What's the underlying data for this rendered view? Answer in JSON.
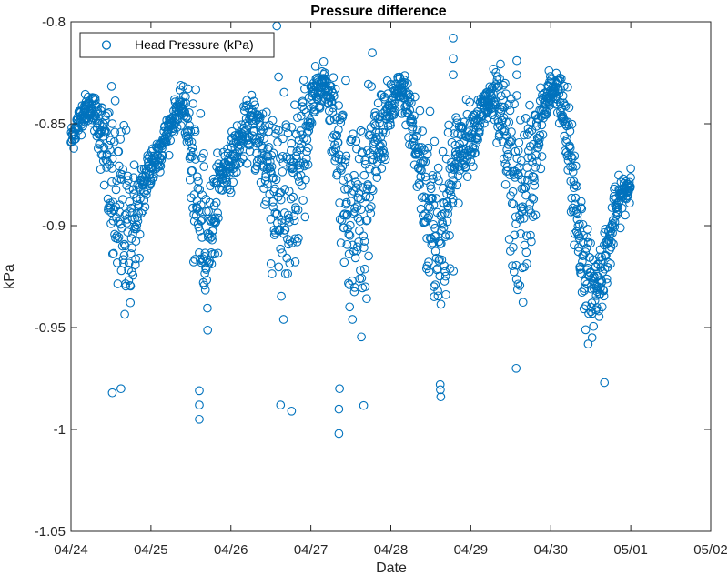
{
  "chart_data": {
    "type": "scatter",
    "title": "Pressure difference",
    "xlabel": "Date",
    "ylabel": "kPa",
    "x_axis_kind": "date",
    "xlim": [
      "04/24",
      "05/02"
    ],
    "ylim": [
      -1.05,
      -0.8
    ],
    "x_ticks": [
      "04/24",
      "04/25",
      "04/26",
      "04/27",
      "04/28",
      "04/29",
      "04/30",
      "05/01",
      "05/02"
    ],
    "y_ticks": [
      -0.8,
      -0.85,
      -0.9,
      -0.95,
      -1,
      -1.05
    ],
    "y_tick_labels": [
      "-0.8",
      "-0.85",
      "-0.9",
      "-0.95",
      "-1",
      "-1.05"
    ],
    "grid": false,
    "legend": {
      "position": "top-left",
      "entries": [
        "Head Pressure (kPa)"
      ]
    },
    "series": [
      {
        "name": "Head Pressure (kPa)",
        "color": "#0072BD",
        "marker": "circle-open",
        "trend": {
          "date": [
            "04/24",
            "04/24",
            "04/24",
            "04/24",
            "04/24",
            "04/24",
            "04/24",
            "04/24",
            "04/24",
            "04/24",
            "04/24",
            "04/24",
            "04/24",
            "04/24",
            "04/24",
            "04/25",
            "04/25",
            "04/25",
            "04/25",
            "04/25",
            "04/25",
            "04/25",
            "04/25",
            "04/25",
            "04/25",
            "04/25",
            "04/25",
            "04/25",
            "04/26",
            "04/26",
            "04/26",
            "04/26",
            "04/26",
            "04/26",
            "04/26",
            "04/26",
            "04/26",
            "04/26",
            "04/26",
            "04/26",
            "04/27",
            "04/27",
            "04/27",
            "04/27",
            "04/27",
            "04/27",
            "04/27",
            "04/27",
            "04/27",
            "04/27",
            "04/27",
            "04/27",
            "04/28",
            "04/28",
            "04/28",
            "04/28",
            "04/28",
            "04/28",
            "04/28",
            "04/28",
            "04/28",
            "04/28",
            "04/28",
            "04/28",
            "04/28",
            "04/29",
            "04/29",
            "04/29",
            "04/29",
            "04/29",
            "04/29",
            "04/29",
            "04/29",
            "04/29",
            "04/29",
            "04/29",
            "04/29",
            "04/30",
            "04/30",
            "04/30",
            "04/30",
            "04/30",
            "04/30",
            "04/30",
            "04/30",
            "04/30",
            "04/30",
            "04/30",
            "04/30",
            "04/30",
            "05/01"
          ],
          "hour": [
            0,
            2,
            4,
            6,
            8,
            10,
            12,
            13,
            14,
            16,
            17,
            18,
            20,
            22,
            23,
            1,
            3,
            4,
            6,
            8,
            10,
            11,
            12,
            14,
            16,
            17,
            19,
            21,
            0,
            2,
            4,
            6,
            9,
            10,
            12,
            14,
            16,
            18,
            20,
            22,
            0,
            2,
            4,
            6,
            8,
            10,
            12,
            14,
            16,
            18,
            20,
            22,
            0,
            2,
            4,
            6,
            8,
            10,
            12,
            14,
            15,
            16,
            17,
            19,
            21,
            0,
            2,
            4,
            6,
            8,
            10,
            12,
            14,
            16,
            18,
            20,
            22,
            0,
            2,
            4,
            6,
            8,
            10,
            12,
            14,
            16,
            18,
            19,
            21,
            23,
            0
          ],
          "value": [
            -0.858,
            -0.85,
            -0.843,
            -0.842,
            -0.848,
            -0.862,
            -0.88,
            -0.89,
            -0.895,
            -0.9,
            -0.905,
            -0.902,
            -0.895,
            -0.88,
            -0.875,
            -0.868,
            -0.862,
            -0.858,
            -0.85,
            -0.843,
            -0.842,
            -0.848,
            -0.87,
            -0.895,
            -0.905,
            -0.908,
            -0.895,
            -0.875,
            -0.868,
            -0.862,
            -0.855,
            -0.85,
            -0.86,
            -0.865,
            -0.872,
            -0.885,
            -0.898,
            -0.895,
            -0.878,
            -0.86,
            -0.845,
            -0.833,
            -0.828,
            -0.84,
            -0.858,
            -0.878,
            -0.892,
            -0.898,
            -0.89,
            -0.875,
            -0.86,
            -0.85,
            -0.843,
            -0.835,
            -0.835,
            -0.848,
            -0.866,
            -0.882,
            -0.893,
            -0.9,
            -0.905,
            -0.9,
            -0.892,
            -0.875,
            -0.86,
            -0.855,
            -0.85,
            -0.843,
            -0.838,
            -0.843,
            -0.855,
            -0.876,
            -0.893,
            -0.89,
            -0.875,
            -0.86,
            -0.843,
            -0.833,
            -0.833,
            -0.848,
            -0.87,
            -0.895,
            -0.92,
            -0.932,
            -0.93,
            -0.918,
            -0.906,
            -0.895,
            -0.886,
            -0.882,
            -0.879
          ],
          "spread": [
            0.006,
            0.006,
            0.006,
            0.006,
            0.01,
            0.02,
            0.032,
            0.04,
            0.045,
            0.042,
            0.035,
            0.03,
            0.02,
            0.012,
            0.012,
            0.01,
            0.008,
            0.007,
            0.006,
            0.006,
            0.008,
            0.015,
            0.028,
            0.035,
            0.032,
            0.025,
            0.018,
            0.012,
            0.01,
            0.01,
            0.01,
            0.012,
            0.02,
            0.028,
            0.038,
            0.045,
            0.05,
            0.045,
            0.035,
            0.025,
            0.015,
            0.008,
            0.006,
            0.012,
            0.025,
            0.035,
            0.042,
            0.045,
            0.04,
            0.032,
            0.022,
            0.015,
            0.01,
            0.008,
            0.008,
            0.015,
            0.025,
            0.032,
            0.038,
            0.042,
            0.045,
            0.042,
            0.036,
            0.025,
            0.015,
            0.012,
            0.01,
            0.01,
            0.01,
            0.015,
            0.025,
            0.035,
            0.042,
            0.04,
            0.03,
            0.02,
            0.012,
            0.008,
            0.008,
            0.015,
            0.025,
            0.03,
            0.022,
            0.018,
            0.016,
            0.014,
            0.012,
            0.01,
            0.008,
            0.008,
            0.007
          ]
        },
        "outliers": [
          {
            "date": "04/25",
            "hour": 14.5,
            "y": -0.995
          },
          {
            "date": "04/25",
            "hour": 14.5,
            "y": -0.988
          },
          {
            "date": "04/25",
            "hour": 14.5,
            "y": -0.981
          },
          {
            "date": "04/25",
            "hour": 14.9,
            "y": -0.845
          },
          {
            "date": "04/26",
            "hour": 14.3,
            "y": -0.827
          },
          {
            "date": "04/26",
            "hour": 14.9,
            "y": -0.988
          },
          {
            "date": "04/26",
            "hour": 18.2,
            "y": -0.991
          },
          {
            "date": "04/27",
            "hour": 8.4,
            "y": -1.002
          },
          {
            "date": "04/27",
            "hour": 8.4,
            "y": -0.99
          },
          {
            "date": "04/27",
            "hour": 8.6,
            "y": -0.98
          },
          {
            "date": "04/28",
            "hour": 18.7,
            "y": -0.808
          },
          {
            "date": "04/28",
            "hour": 18.7,
            "y": -0.818
          },
          {
            "date": "04/28",
            "hour": 18.7,
            "y": -0.826
          },
          {
            "date": "04/28",
            "hour": 15.0,
            "y": -0.984
          },
          {
            "date": "04/28",
            "hour": 14.8,
            "y": -0.978
          },
          {
            "date": "04/29",
            "hour": 13.8,
            "y": -0.819
          },
          {
            "date": "04/29",
            "hour": 13.8,
            "y": -0.826
          },
          {
            "date": "04/29",
            "hour": 13.6,
            "y": -0.97
          },
          {
            "date": "04/30",
            "hour": 16.1,
            "y": -0.977
          },
          {
            "date": "04/24",
            "hour": 12.4,
            "y": -0.982
          },
          {
            "date": "04/24",
            "hour": 15.0,
            "y": -0.98
          },
          {
            "date": "04/24",
            "hour": 12.4,
            "y": -0.85
          },
          {
            "date": "05/01",
            "hour": 0,
            "y": -0.872
          }
        ]
      }
    ]
  }
}
